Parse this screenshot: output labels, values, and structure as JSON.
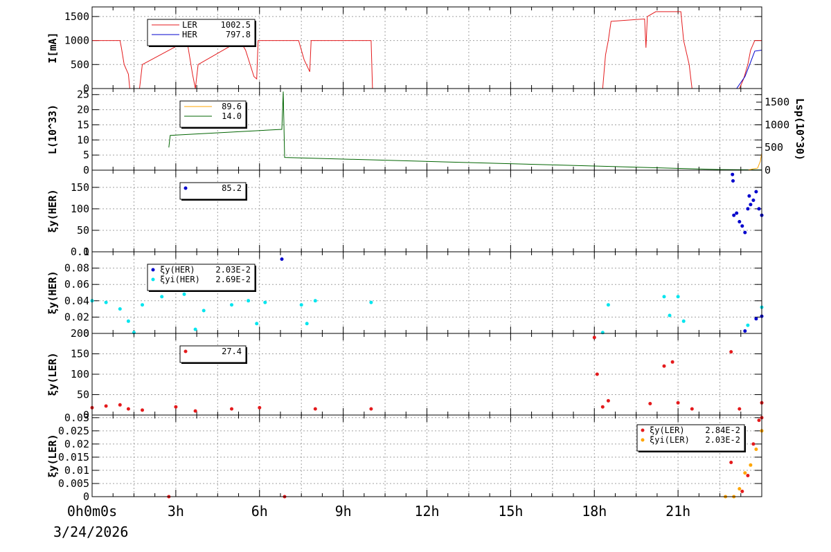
{
  "date_label": "3/24/2026",
  "time_axis": {
    "min": 0,
    "max": 24,
    "ticks": [
      {
        "value": 0,
        "label": "0h0m0s"
      },
      {
        "value": 3,
        "label": "3h"
      },
      {
        "value": 6,
        "label": "6h"
      },
      {
        "value": 9,
        "label": "9h"
      },
      {
        "value": 12,
        "label": "12h"
      },
      {
        "value": 15,
        "label": "15h"
      },
      {
        "value": 18,
        "label": "18h"
      },
      {
        "value": 21,
        "label": "21h"
      }
    ]
  },
  "colors": {
    "ler": "#e41a1c",
    "her": "#0000cc",
    "lum": "#006400",
    "lsp": "#ffa500",
    "cyan": "#00e5ee",
    "orange": "#ffa500",
    "grid": "#a0a0a0"
  },
  "chart_data": [
    {
      "type": "line",
      "ylabel": "I[mA]",
      "ylim": [
        0,
        1700
      ],
      "yticks": [
        0,
        500,
        1000,
        1500
      ],
      "grid": true,
      "legend": {
        "placement": "top-left",
        "entries": [
          {
            "label": "LER",
            "value": "1002.5",
            "color": "#e41a1c"
          },
          {
            "label": "HER",
            "value": "797.8",
            "color": "#0000cc"
          }
        ]
      },
      "series": [
        {
          "name": "LER",
          "color": "#e41a1c",
          "points": [
            [
              0,
              1000
            ],
            [
              1.0,
              1000
            ],
            [
              1.05,
              850
            ],
            [
              1.15,
              500
            ],
            [
              1.3,
              300
            ],
            [
              1.35,
              0
            ],
            [
              1.7,
              0
            ],
            [
              1.8,
              500
            ],
            [
              3.4,
              1000
            ],
            [
              3.6,
              300
            ],
            [
              3.7,
              0
            ],
            [
              3.8,
              500
            ],
            [
              5.3,
              1000
            ],
            [
              5.5,
              800
            ],
            [
              5.8,
              250
            ],
            [
              5.9,
              200
            ],
            [
              5.95,
              1000
            ],
            [
              7.4,
              1000
            ],
            [
              7.6,
              600
            ],
            [
              7.8,
              350
            ],
            [
              7.85,
              1000
            ],
            [
              10.0,
              1000
            ],
            [
              10.05,
              0
            ],
            [
              18.3,
              0
            ],
            [
              18.4,
              700
            ],
            [
              18.5,
              1000
            ],
            [
              18.6,
              1400
            ],
            [
              19.8,
              1450
            ],
            [
              19.85,
              850
            ],
            [
              19.9,
              1500
            ],
            [
              20.2,
              1600
            ],
            [
              21.1,
              1600
            ],
            [
              21.2,
              1000
            ],
            [
              21.4,
              500
            ],
            [
              21.5,
              0
            ],
            [
              23.2,
              0
            ],
            [
              23.35,
              200
            ],
            [
              23.5,
              500
            ],
            [
              23.6,
              800
            ],
            [
              23.75,
              1000
            ],
            [
              24,
              1000
            ]
          ]
        },
        {
          "name": "HER",
          "color": "#0000cc",
          "points": [
            [
              0,
              0
            ],
            [
              23.1,
              0
            ],
            [
              23.4,
              250
            ],
            [
              23.6,
              550
            ],
            [
              23.75,
              780
            ],
            [
              24,
              800
            ]
          ]
        }
      ]
    },
    {
      "type": "line",
      "ylabel": "L(10^33)",
      "ylim": [
        0,
        27
      ],
      "yticks": [
        0,
        5,
        10,
        15,
        20,
        25
      ],
      "y2label": "Lsp(10^30)",
      "y2lim": [
        0,
        1800
      ],
      "y2ticks": [
        0,
        500,
        1000,
        1500
      ],
      "grid": true,
      "legend": {
        "placement": "top-left",
        "entries": [
          {
            "label": "",
            "value": "89.6",
            "color": "#ffa500"
          },
          {
            "label": "",
            "value": "14.0",
            "color": "#006400"
          }
        ]
      },
      "series": [
        {
          "name": "L",
          "color": "#006400",
          "points": [
            [
              2.75,
              7.5
            ],
            [
              2.8,
              11.5
            ],
            [
              6.8,
              13.5
            ],
            [
              6.85,
              26
            ],
            [
              6.9,
              4.2
            ],
            [
              22.5,
              0.2
            ],
            [
              24,
              0.1
            ]
          ]
        },
        {
          "name": "Lsp",
          "color": "#ffa500",
          "points": [
            [
              0,
              0
            ],
            [
              23.5,
              0
            ],
            [
              23.7,
              30
            ],
            [
              23.85,
              45
            ],
            [
              23.95,
              200
            ],
            [
              24,
              380
            ]
          ]
        }
      ]
    },
    {
      "type": "scatter",
      "ylabel": "ξy(HER)",
      "ylim": [
        0,
        190
      ],
      "yticks": [
        0,
        50,
        100,
        150
      ],
      "grid": true,
      "legend": {
        "placement": "top-left",
        "entries": [
          {
            "label": "",
            "value": "85.2",
            "color": "#0000cc"
          }
        ]
      },
      "series": [
        {
          "name": "her",
          "color": "#0000cc",
          "points": [
            [
              22.95,
              180
            ],
            [
              22.97,
              165
            ],
            [
              23.0,
              85
            ],
            [
              23.1,
              90
            ],
            [
              23.2,
              70
            ],
            [
              23.3,
              60
            ],
            [
              23.4,
              45
            ],
            [
              23.5,
              100
            ],
            [
              23.55,
              130
            ],
            [
              23.6,
              110
            ],
            [
              23.7,
              120
            ],
            [
              23.8,
              140
            ],
            [
              23.9,
              100
            ],
            [
              24,
              85
            ]
          ]
        }
      ]
    },
    {
      "type": "scatter",
      "ylabel": "ξy(HER)",
      "ylim": [
        0,
        0.1
      ],
      "yticks": [
        0,
        0.02,
        0.04,
        0.06,
        0.08,
        0.1
      ],
      "ytick_labels": [
        "0",
        "0.02",
        "0.04",
        "0.06",
        "0.08",
        "0.1"
      ],
      "grid": true,
      "legend": {
        "placement": "top-left",
        "entries": [
          {
            "label": "ξy(HER)",
            "value": "2.03E-2",
            "color": "#0000cc"
          },
          {
            "label": "ξyi(HER)",
            "value": "2.69E-2",
            "color": "#00e5ee"
          }
        ]
      },
      "series": [
        {
          "name": "ξyi(HER)",
          "color": "#00e5ee",
          "points": [
            [
              0,
              0.04
            ],
            [
              0.5,
              0.038
            ],
            [
              1.0,
              0.03
            ],
            [
              1.3,
              0.015
            ],
            [
              1.5,
              0.001
            ],
            [
              1.8,
              0.035
            ],
            [
              2.5,
              0.045
            ],
            [
              3.3,
              0.048
            ],
            [
              3.7,
              0.005
            ],
            [
              4.0,
              0.028
            ],
            [
              5.0,
              0.035
            ],
            [
              5.6,
              0.04
            ],
            [
              5.9,
              0.012
            ],
            [
              6.2,
              0.038
            ],
            [
              7.5,
              0.035
            ],
            [
              7.7,
              0.012
            ],
            [
              8.0,
              0.04
            ],
            [
              10,
              0.038
            ],
            [
              18.3,
              0.001
            ],
            [
              18.5,
              0.035
            ],
            [
              20.5,
              0.045
            ],
            [
              20.7,
              0.022
            ],
            [
              21.0,
              0.045
            ],
            [
              21.2,
              0.015
            ],
            [
              23.5,
              0.01
            ],
            [
              24,
              0.032
            ]
          ]
        },
        {
          "name": "ξy(HER)",
          "color": "#0000cc",
          "points": [
            [
              6.8,
              0.091
            ],
            [
              23.4,
              0.003
            ],
            [
              23.8,
              0.018
            ],
            [
              24,
              0.021
            ]
          ]
        }
      ]
    },
    {
      "type": "scatter",
      "ylabel": "ξy(LER)",
      "ylim": [
        0,
        200
      ],
      "yticks": [
        0,
        50,
        100,
        150,
        200
      ],
      "grid": true,
      "legend": {
        "placement": "top-left",
        "entries": [
          {
            "label": "",
            "value": "27.4",
            "color": "#e41a1c"
          }
        ]
      },
      "series": [
        {
          "name": "ler",
          "color": "#e41a1c",
          "points": [
            [
              0,
              18
            ],
            [
              0.5,
              22
            ],
            [
              1.0,
              25
            ],
            [
              1.3,
              15
            ],
            [
              1.8,
              12
            ],
            [
              3.0,
              20
            ],
            [
              3.7,
              10
            ],
            [
              5.0,
              15
            ],
            [
              6.0,
              18
            ],
            [
              8.0,
              15
            ],
            [
              10,
              15
            ],
            [
              18.0,
              190
            ],
            [
              18.1,
              100
            ],
            [
              18.3,
              20
            ],
            [
              18.5,
              35
            ],
            [
              20.0,
              28
            ],
            [
              20.5,
              120
            ],
            [
              20.8,
              130
            ],
            [
              21.0,
              30
            ],
            [
              21.5,
              15
            ],
            [
              22.9,
              155
            ],
            [
              23.2,
              15
            ],
            [
              24,
              30
            ]
          ]
        }
      ]
    },
    {
      "type": "scatter",
      "ylabel": "ξy(LER)",
      "ylim": [
        0,
        0.031
      ],
      "yticks": [
        0,
        0.005,
        0.01,
        0.015,
        0.02,
        0.025,
        0.03
      ],
      "ytick_labels": [
        "0",
        "0.005",
        "0.01",
        "0.015",
        "0.02",
        "0.025",
        "0.03"
      ],
      "grid": true,
      "legend": {
        "placement": "top-right",
        "entries": [
          {
            "label": "ξy(LER)",
            "value": "2.84E-2",
            "color": "#e41a1c"
          },
          {
            "label": "ξyi(LER)",
            "value": "2.03E-2",
            "color": "#ffa500"
          }
        ]
      },
      "series": [
        {
          "name": "ξy(LER)",
          "color": "#e41a1c",
          "points": [
            [
              2.75,
              0
            ],
            [
              6.9,
              0
            ],
            [
              22.9,
              0.013
            ],
            [
              23.3,
              0.002
            ],
            [
              23.5,
              0.008
            ],
            [
              23.7,
              0.02
            ],
            [
              23.9,
              0.029
            ],
            [
              24,
              0.03
            ]
          ]
        },
        {
          "name": "ξyi(LER)",
          "color": "#ffa500",
          "points": [
            [
              22.7,
              0
            ],
            [
              23.0,
              0
            ],
            [
              23.2,
              0.003
            ],
            [
              23.4,
              0.009
            ],
            [
              23.6,
              0.012
            ],
            [
              23.8,
              0.018
            ],
            [
              24,
              0.025
            ]
          ]
        }
      ]
    }
  ]
}
